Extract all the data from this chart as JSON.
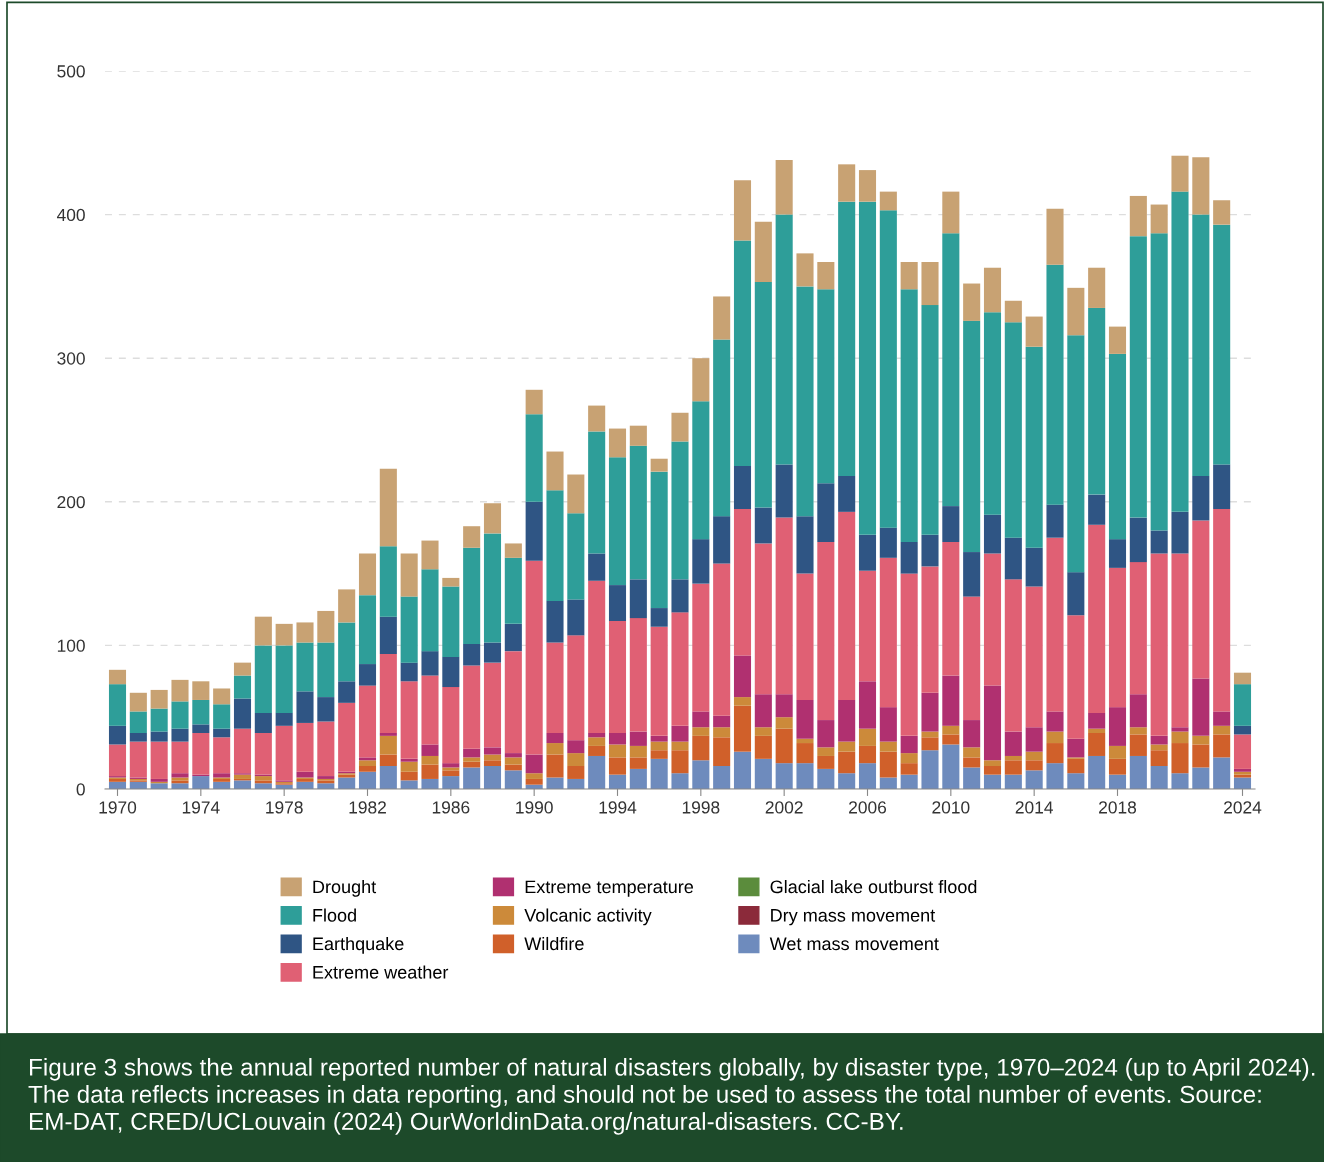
{
  "chart_data": {
    "type": "bar",
    "stacked": true,
    "categories": [
      "1970",
      null,
      null,
      null,
      "1974",
      null,
      null,
      null,
      "1978",
      null,
      null,
      null,
      "1982",
      null,
      null,
      null,
      "1986",
      null,
      null,
      null,
      "1990",
      null,
      null,
      null,
      "1994",
      null,
      null,
      null,
      "1998",
      null,
      null,
      null,
      "2002",
      null,
      null,
      null,
      "2006",
      null,
      null,
      null,
      "2010",
      null,
      null,
      null,
      "2014",
      null,
      null,
      null,
      "2018",
      null,
      null,
      null,
      null,
      null,
      "2024"
    ],
    "series": [
      {
        "name": "Wet mass movement",
        "color": "#6e8bbd",
        "values": [
          5,
          5,
          4,
          4,
          9,
          5,
          6,
          4,
          3,
          5,
          4,
          8,
          12,
          16,
          6,
          7,
          9,
          15,
          16,
          13,
          3,
          8,
          7,
          23,
          10,
          14,
          21,
          11,
          20,
          16,
          26,
          21,
          18,
          18,
          14,
          11,
          18,
          8,
          10,
          27,
          31,
          15,
          10,
          10,
          13,
          18,
          11,
          23,
          10,
          23,
          16,
          11,
          15,
          22,
          8
        ]
      },
      {
        "name": "Dry mass movement",
        "color": "#8b2a3a",
        "values": [
          0,
          0,
          0,
          0,
          0,
          0,
          0,
          0,
          0,
          0,
          0,
          0,
          0,
          0,
          0,
          0,
          0,
          0,
          0,
          0,
          0,
          0,
          0,
          0,
          0,
          0,
          0,
          0,
          0,
          0,
          0,
          0,
          0,
          0,
          0,
          0,
          0,
          0,
          0,
          0,
          0,
          0,
          0,
          0,
          0,
          0,
          0,
          0,
          0,
          0,
          0,
          0,
          0,
          0,
          0
        ]
      },
      {
        "name": "Glacial lake outburst flood",
        "color": "#5b8c3c",
        "values": [
          0,
          0,
          0,
          0,
          0,
          0,
          0,
          0,
          0,
          0,
          0,
          0,
          0,
          0,
          0,
          0,
          0,
          0,
          0,
          0,
          0,
          0,
          0,
          0,
          0,
          0,
          0,
          0,
          0,
          0,
          0,
          0,
          0,
          0,
          0,
          0,
          0,
          0,
          0,
          0,
          0,
          0,
          0,
          0,
          0,
          0,
          0,
          0,
          0,
          0,
          0,
          0,
          0,
          0,
          0
        ]
      },
      {
        "name": "Wildfire",
        "color": "#d0602a",
        "values": [
          2,
          1,
          0,
          2,
          0,
          2,
          1,
          2,
          1,
          2,
          2,
          2,
          4,
          8,
          6,
          10,
          4,
          4,
          4,
          4,
          4,
          16,
          9,
          7,
          12,
          8,
          6,
          16,
          17,
          20,
          32,
          16,
          24,
          14,
          9,
          15,
          12,
          18,
          8,
          9,
          7,
          7,
          6,
          10,
          7,
          14,
          10,
          16,
          11,
          15,
          11,
          21,
          16,
          16,
          2
        ]
      },
      {
        "name": "Volcanic activity",
        "color": "#cc8a3a",
        "values": [
          1,
          1,
          1,
          2,
          0,
          1,
          3,
          3,
          1,
          1,
          1,
          1,
          4,
          13,
          7,
          6,
          2,
          3,
          4,
          5,
          4,
          8,
          9,
          6,
          9,
          8,
          6,
          6,
          6,
          7,
          6,
          6,
          8,
          3,
          6,
          7,
          12,
          7,
          7,
          4,
          6,
          7,
          4,
          3,
          6,
          8,
          1,
          3,
          9,
          5,
          4,
          8,
          6,
          6,
          2
        ]
      },
      {
        "name": "Extreme temperature",
        "color": "#b03070",
        "values": [
          1,
          1,
          2,
          3,
          1,
          3,
          1,
          1,
          1,
          4,
          2,
          1,
          2,
          2,
          2,
          8,
          3,
          6,
          5,
          3,
          13,
          7,
          9,
          3,
          8,
          10,
          4,
          11,
          11,
          8,
          29,
          23,
          16,
          27,
          19,
          29,
          33,
          24,
          12,
          27,
          35,
          19,
          52,
          17,
          17,
          14,
          13,
          11,
          27,
          23,
          6,
          3,
          40,
          10,
          2
        ]
      },
      {
        "name": "Extreme weather",
        "color": "#e06074",
        "values": [
          22,
          25,
          26,
          22,
          29,
          25,
          31,
          29,
          38,
          34,
          38,
          48,
          50,
          55,
          54,
          48,
          53,
          58,
          59,
          71,
          135,
          63,
          73,
          106,
          78,
          79,
          76,
          79,
          89,
          106,
          102,
          105,
          123,
          88,
          124,
          131,
          77,
          104,
          113,
          88,
          93,
          86,
          92,
          106,
          98,
          121,
          86,
          131,
          97,
          92,
          127,
          121,
          110,
          141,
          24
        ]
      },
      {
        "name": "Earthquake",
        "color": "#2f5584",
        "values": [
          13,
          6,
          7,
          9,
          6,
          6,
          21,
          14,
          9,
          22,
          17,
          15,
          15,
          26,
          13,
          17,
          21,
          15,
          14,
          19,
          41,
          29,
          25,
          19,
          25,
          27,
          13,
          23,
          31,
          33,
          30,
          25,
          37,
          40,
          41,
          25,
          25,
          21,
          22,
          22,
          25,
          31,
          27,
          29,
          27,
          23,
          30,
          21,
          20,
          31,
          16,
          29,
          31,
          31,
          6
        ]
      },
      {
        "name": "Flood",
        "color": "#2e9e99",
        "values": [
          29,
          15,
          16,
          19,
          17,
          17,
          16,
          47,
          47,
          34,
          38,
          41,
          48,
          49,
          46,
          57,
          49,
          67,
          76,
          46,
          61,
          77,
          60,
          85,
          89,
          93,
          95,
          96,
          96,
          123,
          157,
          157,
          174,
          160,
          135,
          191,
          232,
          221,
          176,
          160,
          190,
          161,
          141,
          150,
          140,
          167,
          165,
          130,
          129,
          196,
          207,
          223,
          182,
          167,
          29
        ]
      },
      {
        "name": "Drought",
        "color": "#c8a273",
        "values": [
          10,
          13,
          13,
          15,
          13,
          11,
          9,
          20,
          15,
          14,
          22,
          23,
          29,
          54,
          30,
          20,
          6,
          15,
          21,
          10,
          17,
          27,
          27,
          18,
          20,
          14,
          9,
          20,
          30,
          30,
          42,
          42,
          38,
          23,
          19,
          26,
          22,
          13,
          19,
          30,
          29,
          26,
          31,
          15,
          21,
          39,
          33,
          28,
          19,
          28,
          20,
          25,
          40,
          17,
          8
        ]
      }
    ],
    "ylim": [
      0,
      500
    ],
    "yticks": [
      0,
      100,
      200,
      300,
      400,
      500
    ],
    "grid": "y",
    "legend": "bottom",
    "annotations": [
      "Figure 3 shows the annual reported number of natural disasters globally, by disaster type, 1970–2024 (up to April 2024). The data reflects increases in data reporting, and should not be used to assess the total number of events. Source: EM-DAT, CRED/UCLouvain (2024) OurWorldinData.org/natural-disasters. CC-BY."
    ]
  }
}
